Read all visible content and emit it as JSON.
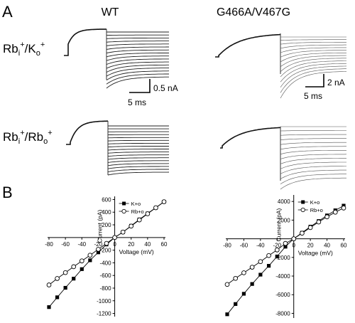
{
  "panels": {
    "a": {
      "letter": "A",
      "wt_title": "WT",
      "mutant_title": "G466A/V467G",
      "row1": {
        "label_main": "Rb",
        "label_sub1": "i",
        "label_sup1": "+",
        "label_sep": "/K",
        "label_sub2": "o",
        "label_sup2": "+"
      },
      "row2": {
        "label_main": "Rb",
        "label_sub1": "i",
        "label_sup1": "+",
        "label_sep": "/Rb",
        "label_sub2": "o",
        "label_sup2": "+"
      },
      "scalebars": {
        "wt": {
          "current": "0.5 nA",
          "time": "5 ms"
        },
        "mutant": {
          "current": "2 nA",
          "time": "5 ms"
        }
      }
    },
    "b": {
      "letter": "B"
    }
  },
  "chart_data": [
    {
      "type": "line",
      "xlabel": "Voltage (mV)",
      "ylabel": "Current (pA)",
      "xlim": [
        -80,
        60
      ],
      "ylim": [
        -1250,
        650
      ],
      "xticks": [
        -80,
        -60,
        -40,
        -20,
        0,
        20,
        40,
        60
      ],
      "xtick_labels": [
        "-80",
        "-60",
        "-40",
        "-20",
        "0",
        "20",
        "40",
        "60"
      ],
      "yticks": [
        -1200,
        -1000,
        -800,
        -600,
        -400,
        -200,
        200,
        400,
        600
      ],
      "ytick_labels": [
        "-1200",
        "-1000",
        "-800",
        "-600",
        "-400",
        "-200",
        "200",
        "400",
        "600"
      ],
      "legend": {
        "position": "top-left",
        "entries": [
          "K+o",
          "Rb+o"
        ]
      },
      "x": [
        -80,
        -70,
        -60,
        -50,
        -40,
        -30,
        -20,
        -10,
        0,
        10,
        20,
        30,
        40,
        50,
        60
      ],
      "series": [
        {
          "name": "K+o",
          "marker": "filled-square",
          "values": [
            -1100,
            -945,
            -795,
            -650,
            -500,
            -360,
            -235,
            -110,
            0,
            85,
            185,
            285,
            380,
            470,
            565
          ]
        },
        {
          "name": "Rb+o",
          "marker": "open-circle",
          "values": [
            -750,
            -648,
            -555,
            -462,
            -370,
            -280,
            -187,
            -93,
            0,
            85,
            180,
            278,
            375,
            470,
            565
          ]
        }
      ]
    },
    {
      "type": "line",
      "xlabel": "Voltage (mV)",
      "ylabel": "Current (pA)",
      "xlim": [
        -80,
        60
      ],
      "ylim": [
        -8500,
        4700
      ],
      "xticks": [
        -80,
        -60,
        -40,
        -20,
        0,
        20,
        40,
        60
      ],
      "xtick_labels": [
        "-80",
        "-60",
        "-40",
        "-20",
        "0",
        "20",
        "40",
        "60"
      ],
      "yticks": [
        -8000,
        -6000,
        -4000,
        -2000,
        2000,
        4000
      ],
      "ytick_labels": [
        "-8000",
        "-6000",
        "-4000",
        "-2000",
        "2000",
        "4000"
      ],
      "legend": {
        "position": "top-left",
        "entries": [
          "K+o",
          "Rb+o"
        ]
      },
      "x": [
        -80,
        -70,
        -60,
        -50,
        -40,
        -30,
        -20,
        -10,
        0,
        10,
        20,
        30,
        40,
        50,
        60
      ],
      "series": [
        {
          "name": "K+o",
          "marker": "filled-square",
          "values": [
            -8100,
            -7000,
            -5900,
            -4850,
            -3850,
            -2900,
            -1900,
            -850,
            0,
            650,
            1300,
            1900,
            2500,
            3050,
            3550
          ]
        },
        {
          "name": "Rb+o",
          "marker": "open-circle",
          "values": [
            -4900,
            -4250,
            -3650,
            -3050,
            -2450,
            -1800,
            -1200,
            -500,
            0,
            600,
            1200,
            1800,
            2350,
            2850,
            3300
          ]
        }
      ]
    }
  ]
}
